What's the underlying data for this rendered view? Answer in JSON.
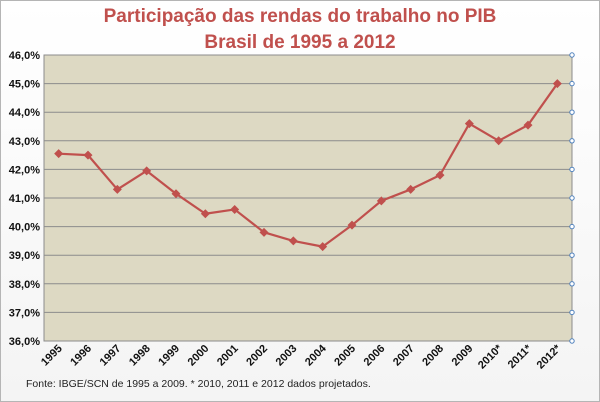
{
  "chart_data": {
    "type": "line",
    "title": "Participação das rendas do trabalho no PIB",
    "subtitle": "Brasil de 1995 a 2012",
    "categories": [
      "1995",
      "1996",
      "1997",
      "1998",
      "1999",
      "2000",
      "2001",
      "2002",
      "2003",
      "2004",
      "2005",
      "2006",
      "2007",
      "2008",
      "2009",
      "2010*",
      "2011*",
      "2012*"
    ],
    "series": [
      {
        "values": [
          42.55,
          42.5,
          41.3,
          41.95,
          41.15,
          40.45,
          40.6,
          39.8,
          39.5,
          39.3,
          40.05,
          40.9,
          41.3,
          41.8,
          43.6,
          43.0,
          43.55,
          45.0
        ],
        "color": "#c0504d"
      }
    ],
    "ylim": [
      36,
      46
    ],
    "yticks": [
      "36,0%",
      "37,0%",
      "38,0%",
      "39,0%",
      "40,0%",
      "41,0%",
      "42,0%",
      "43,0%",
      "44,0%",
      "45,0%",
      "46,0%"
    ],
    "grid": true,
    "plot_background": "#ddd9c3",
    "xlabel": "",
    "ylabel": ""
  },
  "footnote": "Fonte: IBGE/SCN de 1995 a 2009. * 2010, 2011 e 2012 dados projetados."
}
